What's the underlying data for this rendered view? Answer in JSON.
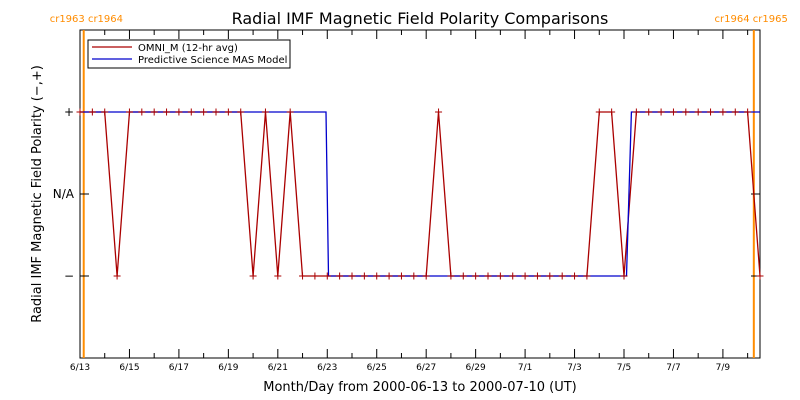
{
  "chart_data": {
    "type": "line",
    "title": "Radial IMF Magnetic Field Polarity Comparisons",
    "xlabel": "Month/Day from 2000-06-13 to 2000-07-10 (UT)",
    "ylabel": "Radial IMF Magnetic Field Polarity (−,+)",
    "x_tick_labels": [
      "6/13",
      "6/15",
      "6/17",
      "6/19",
      "6/21",
      "6/23",
      "6/25",
      "6/27",
      "6/29",
      "7/1",
      "7/3",
      "7/5",
      "7/7",
      "7/9"
    ],
    "x_tick_days": [
      0,
      2,
      4,
      6,
      8,
      10,
      12,
      14,
      16,
      18,
      20,
      22,
      24,
      26
    ],
    "xlim_days": [
      0,
      27.5
    ],
    "y_tick_labels": [
      "+",
      "N/A",
      "−"
    ],
    "y_tick_values": [
      1,
      0,
      -1
    ],
    "ylim": [
      -2,
      2
    ],
    "legend": {
      "position": "top-left",
      "entries": [
        {
          "label": "OMNI_M (12-hr avg)",
          "color": "#aa0000"
        },
        {
          "label": "Predictive Science MAS Model",
          "color": "#0000cc"
        }
      ]
    },
    "carrington_markers": [
      {
        "day": 0.15,
        "label": "cr1963 cr1964",
        "color": "#ff8c00",
        "anchor": "start"
      },
      {
        "day": 27.25,
        "label": "cr1964 cr1965",
        "color": "#ff8c00",
        "anchor": "end"
      }
    ],
    "series": [
      {
        "name": "OMNI_M (12-hr avg)",
        "color": "#aa0000",
        "x": [
          0,
          0.5,
          1,
          1.5,
          2,
          2.5,
          3,
          3.5,
          4,
          4.5,
          5,
          5.5,
          6,
          6.5,
          7,
          7.5,
          8,
          8.5,
          9,
          9.5,
          10,
          10.5,
          11,
          11.5,
          12,
          12.5,
          13,
          13.5,
          14,
          14.5,
          15,
          15.5,
          16,
          16.5,
          17,
          17.5,
          18,
          18.5,
          19,
          19.5,
          20,
          20.5,
          21,
          21.5,
          22,
          22.5,
          23,
          23.5,
          24,
          24.5,
          25,
          25.5,
          26,
          26.5,
          27,
          27.5
        ],
        "y": [
          1,
          1,
          1,
          -1,
          1,
          1,
          1,
          1,
          1,
          1,
          1,
          1,
          1,
          1,
          -1,
          1,
          -1,
          1,
          -1,
          -1,
          -1,
          -1,
          -1,
          -1,
          -1,
          -1,
          -1,
          -1,
          -1,
          1,
          -1,
          -1,
          -1,
          -1,
          -1,
          -1,
          -1,
          -1,
          -1,
          -1,
          -1,
          -1,
          1,
          1,
          -1,
          1,
          1,
          1,
          1,
          1,
          1,
          1,
          1,
          1,
          1,
          -1
        ]
      },
      {
        "name": "Predictive Science MAS Model",
        "color": "#0000cc",
        "x": [
          0,
          9.95,
          10.05,
          22.1,
          22.3,
          27.5
        ],
        "y": [
          1,
          1,
          -1,
          -1,
          1,
          1
        ]
      }
    ]
  }
}
